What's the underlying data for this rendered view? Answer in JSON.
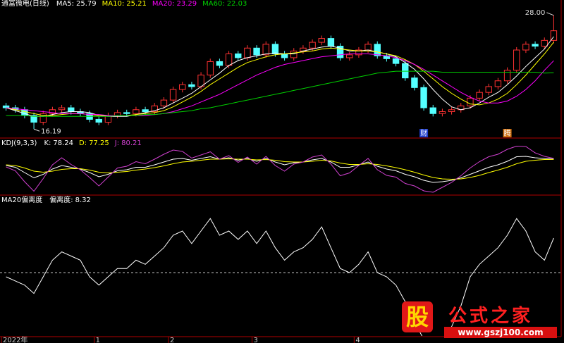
{
  "chart_data": [
    {
      "type": "candlestick",
      "title": "通富微电(日线)",
      "up_color": "#ff3232",
      "down_color": "#54ffff",
      "ylim": [
        15.55,
        28.57
      ],
      "open": [
        18.6,
        18.4,
        18.2,
        17.6,
        16.9,
        17.8,
        18.2,
        18.4,
        18.0,
        17.8,
        17.2,
        16.9,
        17.6,
        17.9,
        17.8,
        18.2,
        18.0,
        18.6,
        19.2,
        20.3,
        20.8,
        20.6,
        21.8,
        23.2,
        22.8,
        24.0,
        23.6,
        24.6,
        23.9,
        25.0,
        24.0,
        23.6,
        24.3,
        24.6,
        25.2,
        25.6,
        24.8,
        23.6,
        23.9,
        24.4,
        25.0,
        23.8,
        23.5,
        23.0,
        21.5,
        20.5,
        18.4,
        17.8,
        18.0,
        18.2,
        18.6,
        19.4,
        20.0,
        20.6,
        21.2,
        22.3,
        24.4,
        25.0,
        24.8,
        25.4
      ],
      "high": [
        18.9,
        18.7,
        18.5,
        17.9,
        18.1,
        18.5,
        18.7,
        18.7,
        18.3,
        18.1,
        17.5,
        17.9,
        18.2,
        18.2,
        18.5,
        18.5,
        18.9,
        19.5,
        20.6,
        21.1,
        21.1,
        22.1,
        23.5,
        23.5,
        24.3,
        24.3,
        24.9,
        24.9,
        25.3,
        25.3,
        24.3,
        24.6,
        24.9,
        25.5,
        25.9,
        25.9,
        25.1,
        24.2,
        24.7,
        25.3,
        25.3,
        24.1,
        23.8,
        23.3,
        21.8,
        20.8,
        18.7,
        18.3,
        18.5,
        18.9,
        19.7,
        20.3,
        20.9,
        21.5,
        22.6,
        24.7,
        25.3,
        25.3,
        25.7,
        28
      ],
      "low": [
        18.1,
        17.9,
        17.3,
        16.19,
        16.6,
        17.5,
        17.9,
        17.7,
        17.5,
        16.9,
        16.6,
        16.6,
        17.3,
        17.5,
        17.5,
        17.7,
        17.7,
        18.3,
        18.9,
        20.0,
        20.3,
        20.3,
        21.5,
        22.5,
        22.5,
        23.3,
        23.3,
        23.6,
        23.6,
        23.7,
        23.3,
        23.3,
        24.0,
        24.3,
        24.9,
        24.5,
        23.3,
        23.3,
        23.6,
        24.1,
        23.5,
        23.2,
        22.7,
        21.2,
        20.2,
        18.1,
        17.5,
        17.5,
        17.7,
        17.9,
        18.3,
        19.1,
        19.7,
        20.3,
        20.9,
        22.0,
        24.1,
        24.5,
        24.5,
        25.1
      ],
      "close": [
        18.4,
        18.2,
        17.6,
        16.9,
        17.8,
        18.2,
        18.4,
        18.0,
        17.8,
        17.2,
        16.9,
        17.6,
        17.9,
        17.8,
        18.2,
        18.0,
        18.6,
        19.2,
        20.3,
        20.8,
        20.6,
        21.8,
        23.2,
        22.8,
        24.0,
        23.6,
        24.6,
        23.9,
        25.0,
        24.0,
        23.6,
        24.3,
        24.6,
        25.2,
        25.6,
        24.8,
        23.6,
        23.9,
        24.4,
        25.0,
        23.8,
        23.5,
        23.0,
        21.5,
        20.5,
        18.4,
        17.8,
        18.0,
        18.2,
        18.6,
        19.4,
        20.0,
        20.6,
        21.2,
        22.3,
        24.4,
        25.0,
        24.8,
        25.4,
        26.4
      ],
      "series": [
        {
          "name": "MA5",
          "color": "#ffffff",
          "values": [
            18.4,
            18.1,
            17.8,
            17.5,
            17.5,
            17.7,
            17.9,
            18.0,
            18.0,
            17.9,
            17.6,
            17.5,
            17.5,
            17.5,
            17.7,
            17.9,
            18.1,
            18.4,
            18.9,
            19.4,
            19.9,
            20.6,
            21.3,
            22.0,
            22.8,
            23.3,
            23.6,
            23.8,
            24.0,
            24.1,
            24.0,
            24.0,
            24.3,
            24.5,
            24.7,
            24.8,
            24.6,
            24.3,
            24.3,
            24.4,
            24.2,
            24.0,
            23.7,
            23.1,
            22.4,
            21.4,
            20.3,
            19.3,
            18.5,
            18.2,
            18.4,
            18.9,
            19.5,
            20.0,
            20.8,
            21.7,
            22.7,
            23.6,
            24.5,
            25.79
          ]
        },
        {
          "name": "MA10",
          "color": "#ffff00",
          "values": [
            18.4,
            18.2,
            18.0,
            17.8,
            17.6,
            17.6,
            17.7,
            17.8,
            17.8,
            17.7,
            17.6,
            17.6,
            17.6,
            17.6,
            17.7,
            17.8,
            17.9,
            18.1,
            18.5,
            19.0,
            19.5,
            20.1,
            20.8,
            21.4,
            22.0,
            22.6,
            23.1,
            23.4,
            23.7,
            23.9,
            24.0,
            24.1,
            24.2,
            24.3,
            24.5,
            24.6,
            24.5,
            24.4,
            24.3,
            24.3,
            24.2,
            24.0,
            23.8,
            23.4,
            22.9,
            22.2,
            21.4,
            20.6,
            19.9,
            19.3,
            18.8,
            18.7,
            18.9,
            19.3,
            19.9,
            20.8,
            21.8,
            22.9,
            24.0,
            25.21
          ]
        },
        {
          "name": "MA20",
          "color": "#ff00ff",
          "values": [
            18.4,
            18.3,
            18.2,
            18.1,
            18.0,
            17.9,
            17.8,
            17.8,
            17.8,
            17.7,
            17.7,
            17.6,
            17.6,
            17.6,
            17.6,
            17.6,
            17.7,
            17.8,
            18.0,
            18.3,
            18.6,
            19.0,
            19.4,
            19.8,
            20.3,
            20.8,
            21.3,
            21.8,
            22.2,
            22.6,
            22.9,
            23.1,
            23.3,
            23.5,
            23.7,
            23.8,
            23.9,
            24.0,
            24.0,
            24.0,
            23.9,
            23.8,
            23.6,
            23.3,
            22.9,
            22.4,
            21.8,
            21.2,
            20.6,
            20.0,
            19.5,
            19.1,
            18.9,
            18.9,
            19.1,
            19.6,
            20.3,
            21.2,
            22.3,
            23.29
          ]
        },
        {
          "name": "MA60",
          "color": "#00d000",
          "values": [
            17.6,
            17.6,
            17.6,
            17.5,
            17.5,
            17.5,
            17.5,
            17.5,
            17.5,
            17.5,
            17.5,
            17.5,
            17.6,
            17.6,
            17.6,
            17.7,
            17.7,
            17.8,
            17.9,
            18.0,
            18.1,
            18.3,
            18.4,
            18.6,
            18.8,
            19.0,
            19.2,
            19.4,
            19.6,
            19.8,
            20.0,
            20.2,
            20.4,
            20.6,
            20.8,
            21.0,
            21.2,
            21.4,
            21.6,
            21.8,
            22.0,
            22.1,
            22.2,
            22.2,
            22.2,
            22.2,
            22.2,
            22.1,
            22.1,
            22.1,
            22.1,
            22.1,
            22.1,
            22.1,
            22.1,
            22.1,
            22.1,
            22.1,
            22.0,
            22.03
          ]
        }
      ],
      "annotations": [
        {
          "index": 59,
          "value": 28,
          "label": "28.00"
        },
        {
          "index": 3,
          "value": 16.19
        }
      ],
      "markers": [
        {
          "index": 45,
          "label": "财",
          "color": "#1e3cc8"
        },
        {
          "index": 54,
          "label": "腾",
          "color": "#d07010"
        }
      ]
    },
    {
      "type": "line",
      "title": "KDJ(9,3,3)",
      "ylim": [
        -20,
        120
      ],
      "series": [
        {
          "name": "K",
          "color": "#ffffff",
          "values": [
            60,
            55,
            40,
            25,
            35,
            50,
            60,
            55,
            50,
            40,
            28,
            35,
            45,
            48,
            55,
            55,
            62,
            70,
            78,
            80,
            75,
            80,
            85,
            78,
            82,
            75,
            80,
            72,
            80,
            70,
            62,
            68,
            70,
            76,
            80,
            70,
            55,
            55,
            62,
            70,
            58,
            50,
            45,
            35,
            28,
            18,
            12,
            14,
            18,
            25,
            35,
            45,
            55,
            62,
            72,
            85,
            86,
            82,
            80,
            78.24
          ]
        },
        {
          "name": "D",
          "color": "#ffff00",
          "values": [
            62,
            60,
            53,
            44,
            41,
            44,
            49,
            51,
            51,
            47,
            41,
            39,
            41,
            43,
            47,
            50,
            54,
            59,
            65,
            70,
            72,
            75,
            78,
            78,
            79,
            78,
            78,
            76,
            77,
            75,
            71,
            70,
            70,
            72,
            75,
            73,
            67,
            63,
            63,
            65,
            63,
            59,
            54,
            48,
            41,
            33,
            26,
            22,
            21,
            22,
            26,
            32,
            40,
            47,
            55,
            65,
            72,
            75,
            77,
            77.25
          ]
        },
        {
          "name": "J",
          "color": "#d040d0",
          "values": [
            56,
            45,
            14,
            -13,
            23,
            62,
            82,
            63,
            48,
            26,
            2,
            27,
            53,
            58,
            71,
            65,
            78,
            92,
            104,
            100,
            81,
            90,
            99,
            78,
            88,
            69,
            84,
            64,
            86,
            60,
            44,
            64,
            70,
            84,
            90,
            64,
            31,
            39,
            60,
            80,
            48,
            32,
            27,
            9,
            2,
            -12,
            -16,
            -2,
            12,
            31,
            53,
            71,
            85,
            92,
            106,
            115,
            114,
            96,
            86,
            80.21
          ]
        }
      ]
    },
    {
      "type": "line",
      "title": "MA20偏离度",
      "ylim": [
        -15.4,
        17.8
      ],
      "reference_line": 0,
      "series": [
        {
          "name": "偏离度",
          "color": "#ffffff",
          "values": [
            -1,
            -2,
            -3,
            -5,
            -1,
            3,
            5,
            4,
            3,
            -1,
            -3,
            -1,
            1,
            1,
            3,
            2,
            4,
            6,
            9,
            10,
            7,
            10,
            13,
            9,
            10,
            8,
            10,
            7,
            10,
            6,
            3,
            5,
            6,
            8,
            11,
            6,
            1,
            0,
            2,
            5,
            0,
            -1,
            -3,
            -7,
            -12,
            -16,
            -19,
            -16,
            -13,
            -8,
            -1,
            2,
            4,
            6,
            9,
            13,
            10,
            5,
            3,
            8.32
          ]
        }
      ],
      "xticks": [
        {
          "value": 0,
          "label": "2022年"
        },
        {
          "value": 10,
          "label": "1"
        },
        {
          "value": 18,
          "label": "2"
        },
        {
          "value": 27,
          "label": "3"
        },
        {
          "value": 38,
          "label": "4"
        }
      ]
    }
  ],
  "watermark": {
    "logo": "股",
    "name": "公式之家",
    "url": "www.gszj100.com"
  }
}
